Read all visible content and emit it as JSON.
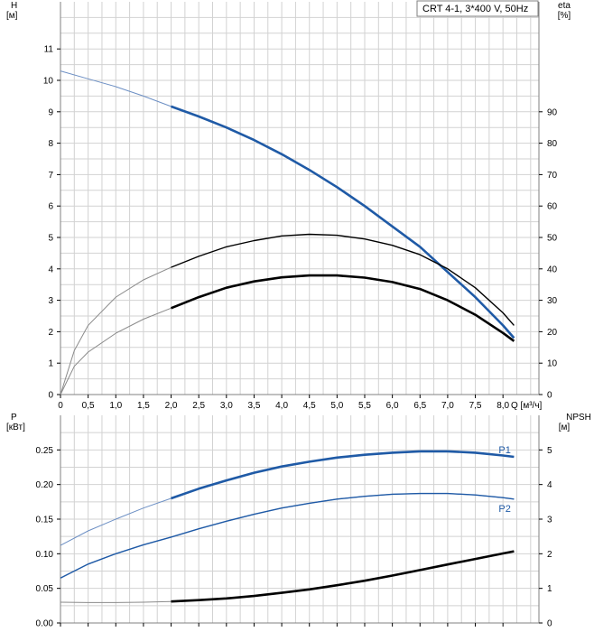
{
  "chart_data": [
    {
      "type": "line",
      "legend_box": "CRT 4-1, 3*400 V, 50Hz",
      "xlabel": "Q [м³/ч]",
      "xlim": [
        0,
        8.65
      ],
      "x_ticks": [
        "0",
        "0,5",
        "1,0",
        "1,5",
        "2,0",
        "2,5",
        "3,0",
        "3,5",
        "4,0",
        "4,5",
        "5,0",
        "5,5",
        "6,0",
        "6,5",
        "7,0",
        "7,5",
        "8,0"
      ],
      "left_axis": {
        "name": "H",
        "unit": "[м]",
        "ylim": [
          0,
          12.5
        ],
        "ticks": [
          "0",
          "1",
          "2",
          "3",
          "4",
          "5",
          "6",
          "7",
          "8",
          "9",
          "10",
          "11"
        ]
      },
      "right_axis": {
        "name": "eta",
        "unit": "[%]",
        "ylim": [
          0,
          125
        ],
        "ticks": [
          "0",
          "10",
          "20",
          "30",
          "40",
          "50",
          "60",
          "70",
          "80",
          "90"
        ]
      },
      "grid": true,
      "series": [
        {
          "axis": "left",
          "color": "#1f5aa6",
          "thick_from": 2.0,
          "x": [
            0,
            0.5,
            1,
            1.5,
            2,
            2.5,
            3,
            3.5,
            4,
            4.5,
            5,
            5.5,
            6,
            6.5,
            7,
            7.5,
            8,
            8.2
          ],
          "y": [
            10.3,
            10.05,
            9.8,
            9.5,
            9.17,
            8.85,
            8.5,
            8.1,
            7.65,
            7.15,
            6.6,
            6.0,
            5.35,
            4.7,
            3.9,
            3.1,
            2.2,
            1.8
          ]
        },
        {
          "axis": "right",
          "color": "#000000",
          "thick_from": 2.0,
          "thin_stroke": true,
          "x": [
            0,
            0.25,
            0.5,
            1,
            1.5,
            2,
            2.5,
            3,
            3.5,
            4,
            4.5,
            5,
            5.5,
            6,
            6.5,
            7,
            7.5,
            8,
            8.2
          ],
          "y": [
            0,
            14,
            22,
            31,
            36.5,
            40.5,
            44,
            47,
            49,
            50.5,
            51,
            50.7,
            49.5,
            47.5,
            44.5,
            40,
            34,
            26,
            22
          ]
        },
        {
          "axis": "right",
          "color": "#000000",
          "thick_from": 2.0,
          "x": [
            0,
            0.25,
            0.5,
            1,
            1.5,
            2,
            2.5,
            3,
            3.5,
            4,
            4.5,
            5,
            5.5,
            6,
            6.5,
            7,
            7.5,
            8,
            8.2
          ],
          "y": [
            0,
            9,
            13.5,
            19.5,
            24,
            27.5,
            31,
            34,
            36,
            37.3,
            37.9,
            37.9,
            37.2,
            35.8,
            33.6,
            30,
            25.4,
            19.6,
            17
          ]
        }
      ]
    },
    {
      "type": "line",
      "xlim": [
        0,
        8.65
      ],
      "left_axis": {
        "name": "P",
        "unit": "[кВт]",
        "ylim": [
          0,
          0.3
        ],
        "ticks": [
          "0.00",
          "0.05",
          "0.10",
          "0.15",
          "0.20",
          "0.25"
        ]
      },
      "right_axis": {
        "name": "NPSH",
        "unit": "[м]",
        "ylim": [
          0,
          6
        ],
        "ticks": [
          "0",
          "1",
          "2",
          "3",
          "4",
          "5"
        ]
      },
      "grid": true,
      "series": [
        {
          "name": "P1",
          "axis": "left",
          "color": "#1f5aa6",
          "thick_from": 2.0,
          "x": [
            0,
            0.5,
            1,
            1.5,
            2,
            2.5,
            3,
            3.5,
            4,
            4.5,
            5,
            5.5,
            6,
            6.5,
            7,
            7.5,
            8,
            8.2
          ],
          "y": [
            0.112,
            0.133,
            0.15,
            0.166,
            0.18,
            0.194,
            0.206,
            0.217,
            0.226,
            0.233,
            0.239,
            0.243,
            0.246,
            0.248,
            0.248,
            0.246,
            0.242,
            0.24
          ]
        },
        {
          "name": "P2",
          "axis": "left",
          "color": "#1f5aa6",
          "thick_from": 99,
          "x": [
            0,
            0.5,
            1,
            1.5,
            2,
            2.5,
            3,
            3.5,
            4,
            4.5,
            5,
            5.5,
            6,
            6.5,
            7,
            7.5,
            8,
            8.2
          ],
          "y": [
            0.065,
            0.085,
            0.1,
            0.113,
            0.124,
            0.136,
            0.147,
            0.157,
            0.166,
            0.173,
            0.179,
            0.183,
            0.186,
            0.187,
            0.187,
            0.185,
            0.181,
            0.179
          ]
        },
        {
          "axis": "right",
          "color": "#000000",
          "thick_from": 2.0,
          "x": [
            0,
            0.5,
            1,
            1.5,
            2,
            2.5,
            3,
            3.5,
            4,
            4.5,
            5,
            5.5,
            6,
            6.5,
            7,
            7.5,
            8,
            8.2
          ],
          "y": [
            0.6,
            0.59,
            0.59,
            0.6,
            0.62,
            0.66,
            0.71,
            0.78,
            0.87,
            0.97,
            1.09,
            1.22,
            1.37,
            1.53,
            1.69,
            1.85,
            2.01,
            2.07
          ]
        }
      ]
    }
  ]
}
